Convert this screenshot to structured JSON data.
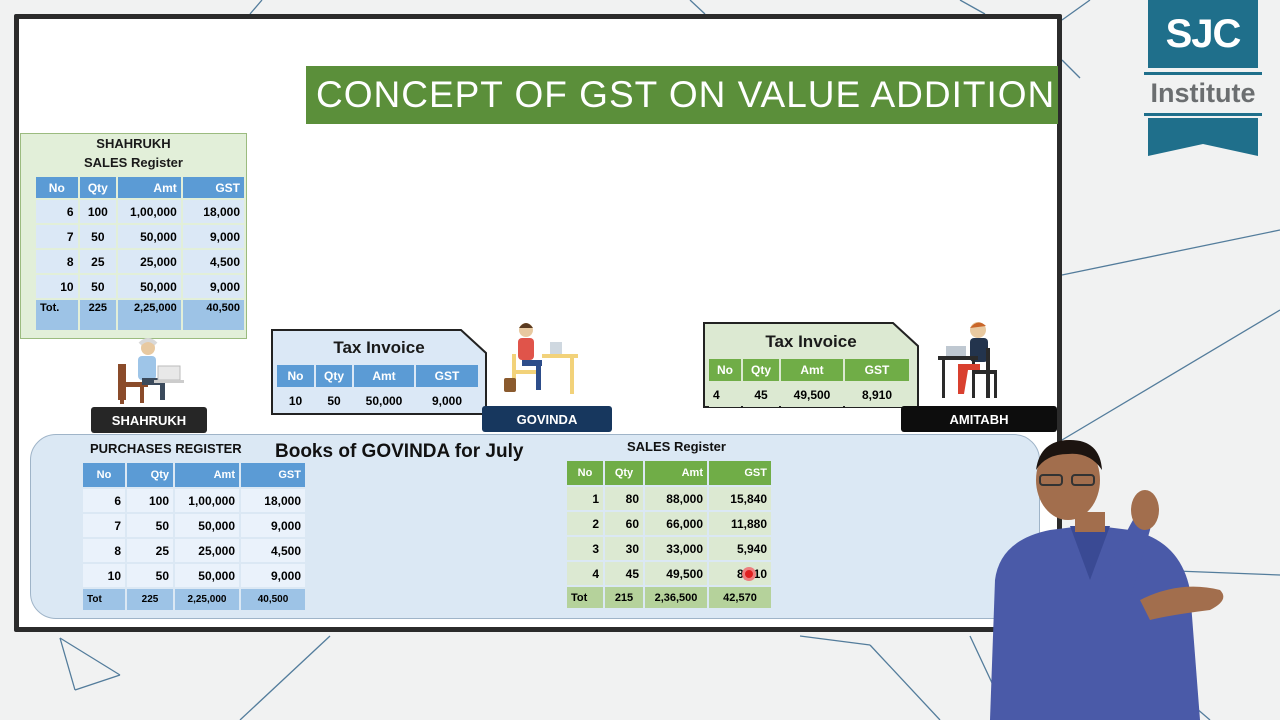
{
  "slide": {
    "title": "CONCEPT OF GST ON VALUE ADDITION"
  },
  "logo": {
    "brand": "SJC",
    "sub": "Institute"
  },
  "shahrukh_register": {
    "owner": "SHAHRUKH",
    "title": "SALES Register",
    "headers": [
      "No",
      "Qty",
      "Amt",
      "GST"
    ],
    "rows": [
      [
        "6",
        "100",
        "1,00,000",
        "18,000"
      ],
      [
        "7",
        "50",
        "50,000",
        "9,000"
      ],
      [
        "8",
        "25",
        "25,000",
        "4,500"
      ],
      [
        "10",
        "50",
        "50,000",
        "9,000"
      ]
    ],
    "total": [
      "Tot.",
      "225",
      "2,25,000",
      "40,500"
    ]
  },
  "people": {
    "shahrukh": "SHAHRUKH",
    "govinda": "GOVINDA",
    "amitabh": "AMITABH"
  },
  "invoice_left": {
    "title": "Tax Invoice",
    "headers": [
      "No",
      "Qty",
      "Amt",
      "GST"
    ],
    "row": [
      "10",
      "50",
      "50,000",
      "9,000"
    ]
  },
  "invoice_right": {
    "title": "Tax Invoice",
    "headers": [
      "No",
      "Qty",
      "Amt",
      "GST"
    ],
    "row": [
      "4",
      "45",
      "49,500",
      "8,910"
    ]
  },
  "books": {
    "title": "Books of GOVINDA for July",
    "purchases": {
      "title": "PURCHASES REGISTER",
      "headers": [
        "No",
        "Qty",
        "Amt",
        "GST"
      ],
      "rows": [
        [
          "6",
          "100",
          "1,00,000",
          "18,000"
        ],
        [
          "7",
          "50",
          "50,000",
          "9,000"
        ],
        [
          "8",
          "25",
          "25,000",
          "4,500"
        ],
        [
          "10",
          "50",
          "50,000",
          "9,000"
        ]
      ],
      "total": [
        "Tot",
        "225",
        "2,25,000",
        "40,500"
      ]
    },
    "sales": {
      "title": "SALES Register",
      "headers": [
        "No",
        "Qty",
        "Amt",
        "GST"
      ],
      "rows": [
        [
          "1",
          "80",
          "88,000",
          "15,840"
        ],
        [
          "2",
          "60",
          "66,000",
          "11,880"
        ],
        [
          "3",
          "30",
          "33,000",
          "5,940"
        ],
        [
          "4",
          "45",
          "49,500",
          "8,910"
        ]
      ],
      "total": [
        "Tot",
        "215",
        "2,36,500",
        "42,570"
      ]
    }
  },
  "colors": {
    "title_green": "#5b8f3a",
    "header_blue": "#5b9bd5",
    "header_green": "#70ad47",
    "logo_teal": "#1f6f8b"
  }
}
